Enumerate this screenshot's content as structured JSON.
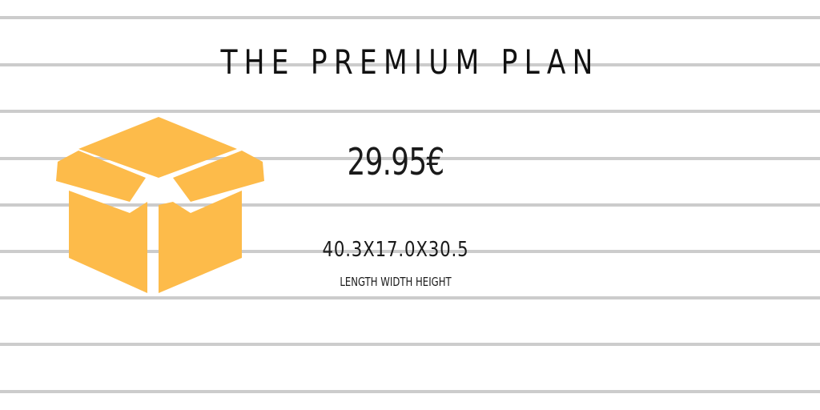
{
  "title": "THE PREMIUM PLAN",
  "price": "29.95€",
  "dimensions": {
    "value": "40.3X17.0X30.5",
    "caption": "LENGTH WIDTH HEIGHT"
  },
  "icon": {
    "name": "box-icon",
    "color": "#fdbb4a"
  },
  "colors": {
    "background": "#ffffff",
    "ruled_lines": "#cccccc",
    "text": "#111111"
  }
}
